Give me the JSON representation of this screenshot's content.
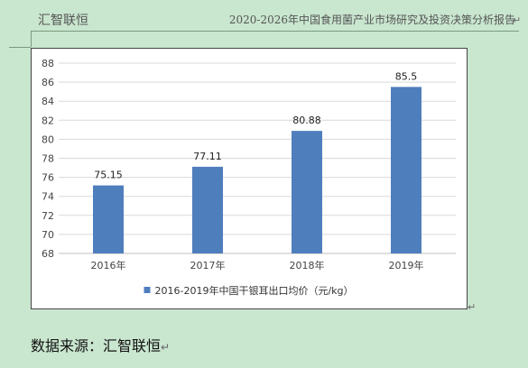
{
  "header": {
    "left_text": "汇智联恒",
    "right_text": "2020-2026年中国食用菌产业市场研究及投资决策分析报告"
  },
  "source_text": "数据来源：汇智联恒",
  "paragraph_mark": "↵",
  "colors": {
    "bar": "#4f7ebd",
    "grid": "#d9d9d9",
    "background": "#c9e6cf"
  },
  "chart_data": {
    "type": "bar",
    "categories": [
      "2016年",
      "2017年",
      "2018年",
      "2019年"
    ],
    "series": [
      {
        "name": "2016-2019年中国干银耳出口均价（元/kg）",
        "values": [
          75.15,
          77.11,
          80.88,
          85.5
        ]
      }
    ],
    "data_labels": [
      "75.15",
      "77.11",
      "80.88",
      "85.5"
    ],
    "ylim": [
      68,
      88
    ],
    "yticks": [
      68,
      70,
      72,
      74,
      76,
      78,
      80,
      82,
      84,
      86,
      88
    ],
    "grid": true,
    "legend_position": "bottom"
  }
}
